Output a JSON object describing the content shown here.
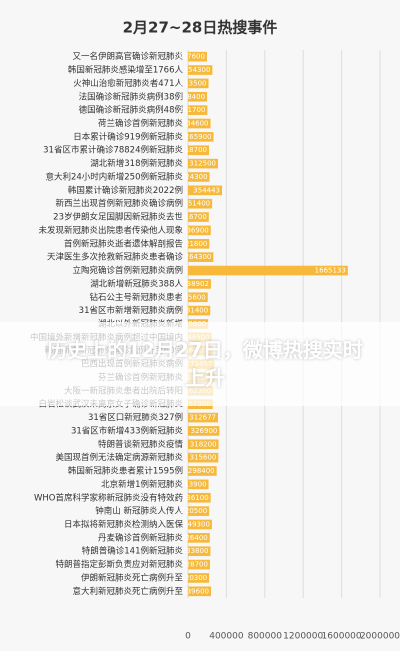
{
  "chart_data": {
    "type": "barh",
    "title": "2月27~28日热搜事件",
    "annotations": [
      "历史上的12月27日，微博热搜实时上升"
    ],
    "categories": [
      "又一名伊朗高官确诊新冠肺炎",
      "韩国新冠肺炎感染增至1766人",
      "火神山治愈新冠肺炎者471人",
      "法国确诊新冠肺炎病例38例",
      "德国确诊新冠肺炎病例48例",
      "荷兰确诊首例新冠肺炎",
      "日本累计确诊919例新冠肺炎",
      "31省区市累计确诊78824例新冠肺炎",
      "湖北新增318例新冠肺炎",
      "意大利24小时内新增250例新冠肺炎",
      "韩国累计确诊新冠肺炎2022例",
      "新西兰出现首例新冠肺炎确诊病例",
      "23岁伊朗女足国脚因新冠肺炎去世",
      "未发现新冠肺炎出院患者传染他人现象",
      "首例新冠肺炎逝者遗体解剖报告",
      "天津医生多次抢救新冠肺炎患者确诊",
      "立陶宛确诊首例新冠肺炎病例",
      "湖北新增新冠肺炎388人",
      "钻石公主号新冠肺炎患者",
      "31省区市新增新冠肺炎病例",
      "湖北以外新冠肺炎新增",
      "中国境外新增新冠肺炎病例超过中国境内",
      "韩国新增新冠肺炎确诊病例升至60例",
      "巴西出现首例新冠肺炎病例",
      "芬兰确诊首例新冠肺炎",
      "大阪一新冠肺炎患者出院后转阳",
      "白岩松谈武汉未离京女子确诊新冠肺炎",
      "31省区口新冠肺炎327例",
      "31省区市新增433例新冠肺炎",
      "特朗普谈新冠肺炎疫情",
      "美国现首例无法确定病源新冠肺炎",
      "韩国新冠肺炎患者累计1595例",
      "北京新增1例新冠肺炎",
      "WHO首席科学家称新冠肺炎没有特效药",
      "钟南山 新冠肺炎人传人",
      "日本拟将新冠肺炎检测纳入医保",
      "丹麦确诊首例新冠肺炎",
      "特朗普确诊141例新冠肺炎",
      "特朗普指定彭斯负责应对新冠肺炎",
      "伊朗新冠肺炎死亡病例升至",
      "意大利新冠肺炎死亡病例升至"
    ],
    "values": [
      197600,
      254300,
      213500,
      198400,
      201700,
      234600,
      265900,
      218700,
      312500,
      224300,
      354443,
      251400,
      216700,
      236900,
      221800,
      264300,
      1665133,
      238902,
      205600,
      231400,
      209800,
      246500,
      260100,
      273457,
      284600,
      262300,
      257900,
      312677,
      326900,
      318200,
      315600,
      298400,
      213900,
      236100,
      220500,
      249300,
      226400,
      233800,
      228700,
      220300,
      239600
    ],
    "color": "#f6b93b",
    "xlim": [
      0,
      2000000
    ],
    "xticks": [
      0,
      400000,
      800000,
      1200000,
      1600000,
      2000000
    ],
    "grid": true
  }
}
